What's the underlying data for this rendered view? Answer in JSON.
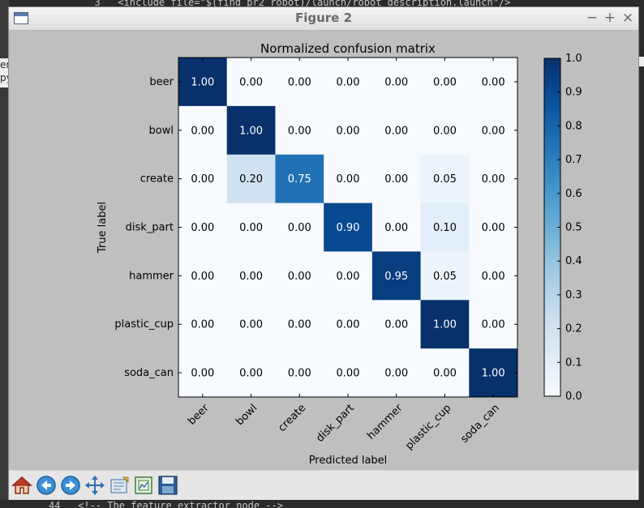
{
  "window": {
    "title": "Figure 2"
  },
  "background": {
    "editor_top_line": "  3   <include file=\"$(find pr2_robot)/launch/robot_description.launch\"/>",
    "editor_bottom_line": "44   <!-- The feature extractor node -->",
    "left_fragment": "en\npy"
  },
  "toolbar": {
    "buttons": [
      {
        "name": "home-button",
        "icon": "home-icon"
      },
      {
        "name": "back-button",
        "icon": "arrow-left-icon"
      },
      {
        "name": "forward-button",
        "icon": "arrow-right-icon"
      },
      {
        "name": "pan-button",
        "icon": "move-icon"
      },
      {
        "name": "configure-subplots-button",
        "icon": "subplots-icon"
      },
      {
        "name": "edit-axes-button",
        "icon": "edit-axes-icon"
      },
      {
        "name": "save-button",
        "icon": "save-icon"
      }
    ]
  },
  "chart_data": {
    "type": "heatmap",
    "title": "Normalized confusion matrix",
    "xlabel": "Predicted label",
    "ylabel": "True label",
    "x_categories": [
      "beer",
      "bowl",
      "create",
      "disk_part",
      "hammer",
      "plastic_cup",
      "soda_can"
    ],
    "y_categories": [
      "beer",
      "bowl",
      "create",
      "disk_part",
      "hammer",
      "plastic_cup",
      "soda_can"
    ],
    "values": [
      [
        1.0,
        0.0,
        0.0,
        0.0,
        0.0,
        0.0,
        0.0
      ],
      [
        0.0,
        1.0,
        0.0,
        0.0,
        0.0,
        0.0,
        0.0
      ],
      [
        0.0,
        0.2,
        0.75,
        0.0,
        0.0,
        0.05,
        0.0
      ],
      [
        0.0,
        0.0,
        0.0,
        0.9,
        0.0,
        0.1,
        0.0
      ],
      [
        0.0,
        0.0,
        0.0,
        0.0,
        0.95,
        0.05,
        0.0
      ],
      [
        0.0,
        0.0,
        0.0,
        0.0,
        0.0,
        1.0,
        0.0
      ],
      [
        0.0,
        0.0,
        0.0,
        0.0,
        0.0,
        0.0,
        1.0
      ]
    ],
    "cell_labels": [
      [
        "1.00",
        "0.00",
        "0.00",
        "0.00",
        "0.00",
        "0.00",
        "0.00"
      ],
      [
        "0.00",
        "1.00",
        "0.00",
        "0.00",
        "0.00",
        "0.00",
        "0.00"
      ],
      [
        "0.00",
        "0.20",
        "0.75",
        "0.00",
        "0.00",
        "0.05",
        "0.00"
      ],
      [
        "0.00",
        "0.00",
        "0.00",
        "0.90",
        "0.00",
        "0.10",
        "0.00"
      ],
      [
        "0.00",
        "0.00",
        "0.00",
        "0.00",
        "0.95",
        "0.05",
        "0.00"
      ],
      [
        "0.00",
        "0.00",
        "0.00",
        "0.00",
        "0.00",
        "1.00",
        "0.00"
      ],
      [
        "0.00",
        "0.00",
        "0.00",
        "0.00",
        "0.00",
        "0.00",
        "1.00"
      ]
    ],
    "colormap": "Blues",
    "colorbar": {
      "range": [
        0.0,
        1.0
      ],
      "ticks": [
        0.0,
        0.1,
        0.2,
        0.3,
        0.4,
        0.5,
        0.6,
        0.7,
        0.8,
        0.9,
        1.0
      ],
      "tick_labels": [
        "0.0",
        "0.1",
        "0.2",
        "0.3",
        "0.4",
        "0.5",
        "0.6",
        "0.7",
        "0.8",
        "0.9",
        "1.0"
      ]
    },
    "grid": false,
    "text_color_light": "#ffffff",
    "text_color_dark": "#000000"
  }
}
